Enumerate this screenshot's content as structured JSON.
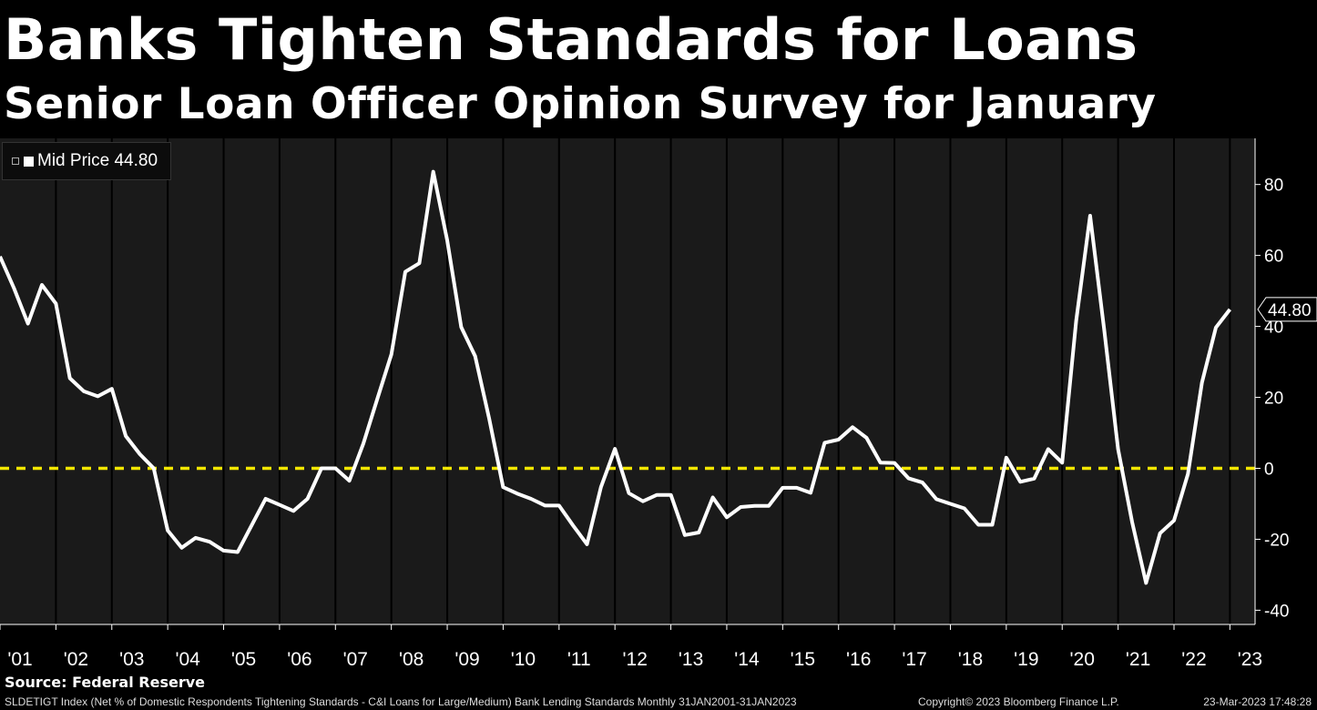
{
  "header": {
    "title": "Banks Tighten Standards for Loans",
    "subtitle": "Senior Loan Officer Opinion Survey for January"
  },
  "legend": {
    "label": "Mid Price 44.80"
  },
  "source": "Source: Federal Reserve",
  "footer": {
    "index_desc": "SLDETIGT Index (Net % of Domestic Respondents Tightening Standards - C&I Loans for Large/Medium) Bank Lending Standards  Monthly 31JAN2001-31JAN2023",
    "copyright": "Copyright© 2023 Bloomberg Finance L.P.",
    "timestamp": "23-Mar-2023 17:48:28"
  },
  "colors": {
    "background": "#000000",
    "plot_background": "#1a1a1a",
    "gridline": "#000000",
    "line": "#ffffff",
    "zero_line": "#f2e600"
  },
  "chart_data": {
    "type": "line",
    "title": "Banks Tighten Standards for Loans",
    "subtitle": "Senior Loan Officer Opinion Survey for January",
    "xlabel": "",
    "ylabel": "",
    "ylim": [
      -44,
      93
    ],
    "xlim": [
      2001.0,
      2023.45
    ],
    "yticks": [
      -40,
      -20,
      0,
      20,
      40,
      60,
      80
    ],
    "ytick_labels": [
      "-40",
      "-20",
      "0",
      "20",
      "40",
      "60",
      "80"
    ],
    "xtick_labels": [
      "'01",
      "'02",
      "'03",
      "'04",
      "'05",
      "'06",
      "'07",
      "'08",
      "'09",
      "'10",
      "'11",
      "'12",
      "'13",
      "'14",
      "'15",
      "'16",
      "'17",
      "'18",
      "'19",
      "'20",
      "'21",
      "'22",
      "'23"
    ],
    "grid": true,
    "legend_position": "top-left",
    "last_value": 44.8,
    "last_value_label": "44.80",
    "reference_line": {
      "y": 0,
      "style": "dashed",
      "color": "#f2e600"
    },
    "series": [
      {
        "name": "Mid Price",
        "x": [
          2001.0,
          2001.25,
          2001.5,
          2001.75,
          2002.0,
          2002.25,
          2002.5,
          2002.75,
          2003.0,
          2003.25,
          2003.5,
          2003.75,
          2004.0,
          2004.25,
          2004.5,
          2004.75,
          2005.0,
          2005.25,
          2005.5,
          2005.75,
          2006.0,
          2006.25,
          2006.5,
          2006.75,
          2007.0,
          2007.25,
          2007.5,
          2007.75,
          2008.0,
          2008.25,
          2008.5,
          2008.75,
          2009.0,
          2009.25,
          2009.5,
          2009.75,
          2010.0,
          2010.25,
          2010.5,
          2010.75,
          2011.0,
          2011.25,
          2011.5,
          2011.75,
          2012.0,
          2012.25,
          2012.5,
          2012.75,
          2013.0,
          2013.25,
          2013.5,
          2013.75,
          2014.0,
          2014.25,
          2014.5,
          2014.75,
          2015.0,
          2015.25,
          2015.5,
          2015.75,
          2016.0,
          2016.25,
          2016.5,
          2016.75,
          2017.0,
          2017.25,
          2017.5,
          2017.75,
          2018.0,
          2018.25,
          2018.5,
          2018.75,
          2019.0,
          2019.25,
          2019.5,
          2019.75,
          2020.0,
          2020.25,
          2020.5,
          2020.75,
          2021.0,
          2021.25,
          2021.5,
          2021.75,
          2022.0,
          2022.25,
          2022.5,
          2022.75,
          2023.0
        ],
        "values": [
          59.7,
          50.8,
          40.8,
          51.7,
          46.4,
          25.4,
          21.7,
          20.3,
          22.4,
          9.1,
          4.0,
          0.0,
          -17.5,
          -22.4,
          -19.6,
          -20.7,
          -23.2,
          -23.6,
          -16.1,
          -8.6,
          -10.3,
          -12.0,
          -8.6,
          0.0,
          0.0,
          -3.5,
          7.0,
          19.6,
          32.1,
          55.4,
          57.8,
          83.6,
          64.3,
          39.8,
          31.6,
          14.0,
          -5.3,
          -7.1,
          -8.6,
          -10.5,
          -10.5,
          -16.1,
          -21.4,
          -5.3,
          5.5,
          -7.0,
          -9.3,
          -7.5,
          -7.5,
          -18.8,
          -18.1,
          -8.2,
          -13.8,
          -10.9,
          -10.6,
          -10.6,
          -5.5,
          -5.5,
          -6.9,
          7.2,
          8.1,
          11.6,
          8.6,
          1.6,
          1.5,
          -2.8,
          -4.0,
          -8.7,
          -10.0,
          -11.3,
          -15.9,
          -15.9,
          3.0,
          -3.8,
          -2.9,
          5.4,
          1.6,
          41.6,
          71.2,
          39.2,
          5.4,
          -15.1,
          -32.3,
          -18.3,
          -14.7,
          -1.6,
          24.2,
          39.7,
          44.8
        ]
      }
    ]
  }
}
